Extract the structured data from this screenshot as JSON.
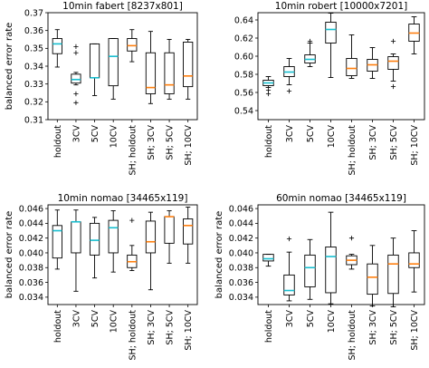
{
  "chart_data": [
    {
      "type": "boxplot",
      "title": "10min fabert [8237x801]",
      "ylabel": "balanced error rate",
      "xlabel": "",
      "ylim": [
        0.31,
        0.37
      ],
      "yticks": [
        0.31,
        0.32,
        0.33,
        0.34,
        0.35,
        0.36,
        0.37
      ],
      "ytick_labels": [
        "0.31",
        "0.32",
        "0.33",
        "0.34",
        "0.35",
        "0.36",
        "0.37"
      ],
      "categories": [
        "holdout",
        "3CV",
        "5CV",
        "10CV",
        "SH; holdout",
        "SH; 3CV",
        "SH; 5CV",
        "SH; 10CV"
      ],
      "boxes": [
        {
          "whisker_low": 0.3395,
          "q1": 0.347,
          "median": 0.3525,
          "q3": 0.3555,
          "whisker_high": 0.3605,
          "median_color": "#17becf",
          "fliers": []
        },
        {
          "whisker_low": 0.3295,
          "q1": 0.3305,
          "median": 0.3325,
          "q3": 0.3355,
          "whisker_high": 0.3365,
          "median_color": "#17becf",
          "fliers": [
            0.351,
            0.3475,
            0.3245,
            0.3195
          ]
        },
        {
          "whisker_low": 0.3235,
          "q1": 0.3335,
          "median": 0.3335,
          "q3": 0.3525,
          "whisker_high": 0.3525,
          "median_color": "#17becf",
          "fliers": []
        },
        {
          "whisker_low": 0.3215,
          "q1": 0.329,
          "median": 0.3455,
          "q3": 0.3555,
          "whisker_high": 0.3555,
          "median_color": "#17becf",
          "fliers": []
        },
        {
          "whisker_low": 0.3425,
          "q1": 0.3485,
          "median": 0.3515,
          "q3": 0.3555,
          "whisker_high": 0.3605,
          "median_color": "#ff7f0e",
          "fliers": []
        },
        {
          "whisker_low": 0.319,
          "q1": 0.3245,
          "median": 0.328,
          "q3": 0.3475,
          "whisker_high": 0.3595,
          "median_color": "#ff7f0e",
          "fliers": []
        },
        {
          "whisker_low": 0.3215,
          "q1": 0.3245,
          "median": 0.3295,
          "q3": 0.3475,
          "whisker_high": 0.355,
          "median_color": "#ff7f0e",
          "fliers": []
        },
        {
          "whisker_low": 0.3215,
          "q1": 0.3285,
          "median": 0.3345,
          "q3": 0.3535,
          "whisker_high": 0.355,
          "median_color": "#ff7f0e",
          "fliers": []
        }
      ]
    },
    {
      "type": "boxplot",
      "title": "10min robert [10000x7201]",
      "ylabel": "",
      "xlabel": "",
      "ylim": [
        0.53,
        0.648
      ],
      "yticks": [
        0.54,
        0.56,
        0.58,
        0.6,
        0.62,
        0.64
      ],
      "ytick_labels": [
        "0.54",
        "0.56",
        "0.58",
        "0.60",
        "0.62",
        "0.64"
      ],
      "categories": [
        "holdout",
        "3CV",
        "5CV",
        "10CV",
        "SH; holdout",
        "SH; 3CV",
        "SH; 5CV",
        "SH; 10CV"
      ],
      "boxes": [
        {
          "whisker_low": 0.5655,
          "q1": 0.5675,
          "median": 0.5705,
          "q3": 0.5735,
          "whisker_high": 0.5775,
          "median_color": "#17becf",
          "fliers": [
            0.5625,
            0.5585
          ]
        },
        {
          "whisker_low": 0.5685,
          "q1": 0.5775,
          "median": 0.5825,
          "q3": 0.5885,
          "whisker_high": 0.5975,
          "median_color": "#17becf",
          "fliers": [
            0.5615
          ]
        },
        {
          "whisker_low": 0.5885,
          "q1": 0.5925,
          "median": 0.5965,
          "q3": 0.6015,
          "whisker_high": 0.6145,
          "median_color": "#17becf",
          "fliers": [
            0.6165
          ]
        },
        {
          "whisker_low": 0.5765,
          "q1": 0.6145,
          "median": 0.6295,
          "q3": 0.6375,
          "whisker_high": 0.6475,
          "median_color": "#17becf",
          "fliers": []
        },
        {
          "whisker_low": 0.5755,
          "q1": 0.5785,
          "median": 0.5865,
          "q3": 0.5975,
          "whisker_high": 0.6235,
          "median_color": "#ff7f0e",
          "fliers": []
        },
        {
          "whisker_low": 0.5755,
          "q1": 0.5835,
          "median": 0.5905,
          "q3": 0.5965,
          "whisker_high": 0.6095,
          "median_color": "#ff7f0e",
          "fliers": []
        },
        {
          "whisker_low": 0.5725,
          "q1": 0.5855,
          "median": 0.5945,
          "q3": 0.5995,
          "whisker_high": 0.6025,
          "median_color": "#ff7f0e",
          "fliers": [
            0.6165,
            0.5665
          ]
        },
        {
          "whisker_low": 0.6025,
          "q1": 0.6165,
          "median": 0.6255,
          "q3": 0.6355,
          "whisker_high": 0.6435,
          "median_color": "#ff7f0e",
          "fliers": []
        }
      ]
    },
    {
      "type": "boxplot",
      "title": "10min nomao [34465x119]",
      "ylabel": "balanced error rate",
      "xlabel": "",
      "ylim": [
        0.033,
        0.0465
      ],
      "yticks": [
        0.034,
        0.036,
        0.038,
        0.04,
        0.042,
        0.044,
        0.046
      ],
      "ytick_labels": [
        "0.034",
        "0.036",
        "0.038",
        "0.040",
        "0.042",
        "0.044",
        "0.046"
      ],
      "categories": [
        "holdout",
        "3CV",
        "5CV",
        "10CV",
        "SH; holdout",
        "SH; 3CV",
        "SH; 5CV",
        "SH; 10CV"
      ],
      "boxes": [
        {
          "whisker_low": 0.0378,
          "q1": 0.0393,
          "median": 0.043,
          "q3": 0.0437,
          "whisker_high": 0.0458,
          "median_color": "#17becf",
          "fliers": []
        },
        {
          "whisker_low": 0.0348,
          "q1": 0.04,
          "median": 0.0442,
          "q3": 0.0442,
          "whisker_high": 0.0458,
          "median_color": "#17becf",
          "fliers": []
        },
        {
          "whisker_low": 0.0366,
          "q1": 0.0397,
          "median": 0.0417,
          "q3": 0.044,
          "whisker_high": 0.0448,
          "median_color": "#17becf",
          "fliers": []
        },
        {
          "whisker_low": 0.0374,
          "q1": 0.04,
          "median": 0.0434,
          "q3": 0.0444,
          "whisker_high": 0.0457,
          "median_color": "#17becf",
          "fliers": []
        },
        {
          "whisker_low": 0.0376,
          "q1": 0.038,
          "median": 0.0388,
          "q3": 0.0397,
          "whisker_high": 0.041,
          "median_color": "#ff7f0e",
          "fliers": [
            0.0444
          ]
        },
        {
          "whisker_low": 0.035,
          "q1": 0.04,
          "median": 0.0415,
          "q3": 0.0443,
          "whisker_high": 0.0455,
          "median_color": "#ff7f0e",
          "fliers": []
        },
        {
          "whisker_low": 0.0386,
          "q1": 0.0413,
          "median": 0.0449,
          "q3": 0.0449,
          "whisker_high": 0.0457,
          "median_color": "#ff7f0e",
          "fliers": []
        },
        {
          "whisker_low": 0.0386,
          "q1": 0.0412,
          "median": 0.0437,
          "q3": 0.0446,
          "whisker_high": 0.0462,
          "median_color": "#ff7f0e",
          "fliers": []
        }
      ]
    },
    {
      "type": "boxplot",
      "title": "60min nomao [34465x119]",
      "ylabel": "balanced error rate",
      "xlabel": "",
      "ylim": [
        0.033,
        0.0465
      ],
      "yticks": [
        0.034,
        0.036,
        0.038,
        0.04,
        0.042,
        0.044,
        0.046
      ],
      "ytick_labels": [
        "0.034",
        "0.036",
        "0.038",
        "0.040",
        "0.042",
        "0.044",
        "0.046"
      ],
      "categories": [
        "holdout",
        "3CV",
        "5CV",
        "10CV",
        "SH; holdout",
        "SH; 3CV",
        "SH; 5CV",
        "SH; 10CV"
      ],
      "boxes": [
        {
          "whisker_low": 0.0382,
          "q1": 0.0389,
          "median": 0.0392,
          "q3": 0.0398,
          "whisker_high": 0.0398,
          "median_color": "#17becf",
          "fliers": []
        },
        {
          "whisker_low": 0.0335,
          "q1": 0.0343,
          "median": 0.0349,
          "q3": 0.037,
          "whisker_high": 0.0401,
          "median_color": "#17becf",
          "fliers": [
            0.0419
          ]
        },
        {
          "whisker_low": 0.0337,
          "q1": 0.0354,
          "median": 0.038,
          "q3": 0.0397,
          "whisker_high": 0.0418,
          "median_color": "#17becf",
          "fliers": []
        },
        {
          "whisker_low": 0.0331,
          "q1": 0.0346,
          "median": 0.0395,
          "q3": 0.0408,
          "whisker_high": 0.0455,
          "median_color": "#17becf",
          "fliers": []
        },
        {
          "whisker_low": 0.0378,
          "q1": 0.0384,
          "median": 0.039,
          "q3": 0.0396,
          "whisker_high": 0.0398,
          "median_color": "#ff7f0e",
          "fliers": [
            0.042
          ]
        },
        {
          "whisker_low": 0.0328,
          "q1": 0.0344,
          "median": 0.0367,
          "q3": 0.0385,
          "whisker_high": 0.041,
          "median_color": "#ff7f0e",
          "fliers": []
        },
        {
          "whisker_low": 0.0327,
          "q1": 0.0345,
          "median": 0.0385,
          "q3": 0.0397,
          "whisker_high": 0.042,
          "median_color": "#ff7f0e",
          "fliers": []
        },
        {
          "whisker_low": 0.0347,
          "q1": 0.038,
          "median": 0.0385,
          "q3": 0.04,
          "whisker_high": 0.043,
          "median_color": "#ff7f0e",
          "fliers": []
        }
      ]
    }
  ]
}
